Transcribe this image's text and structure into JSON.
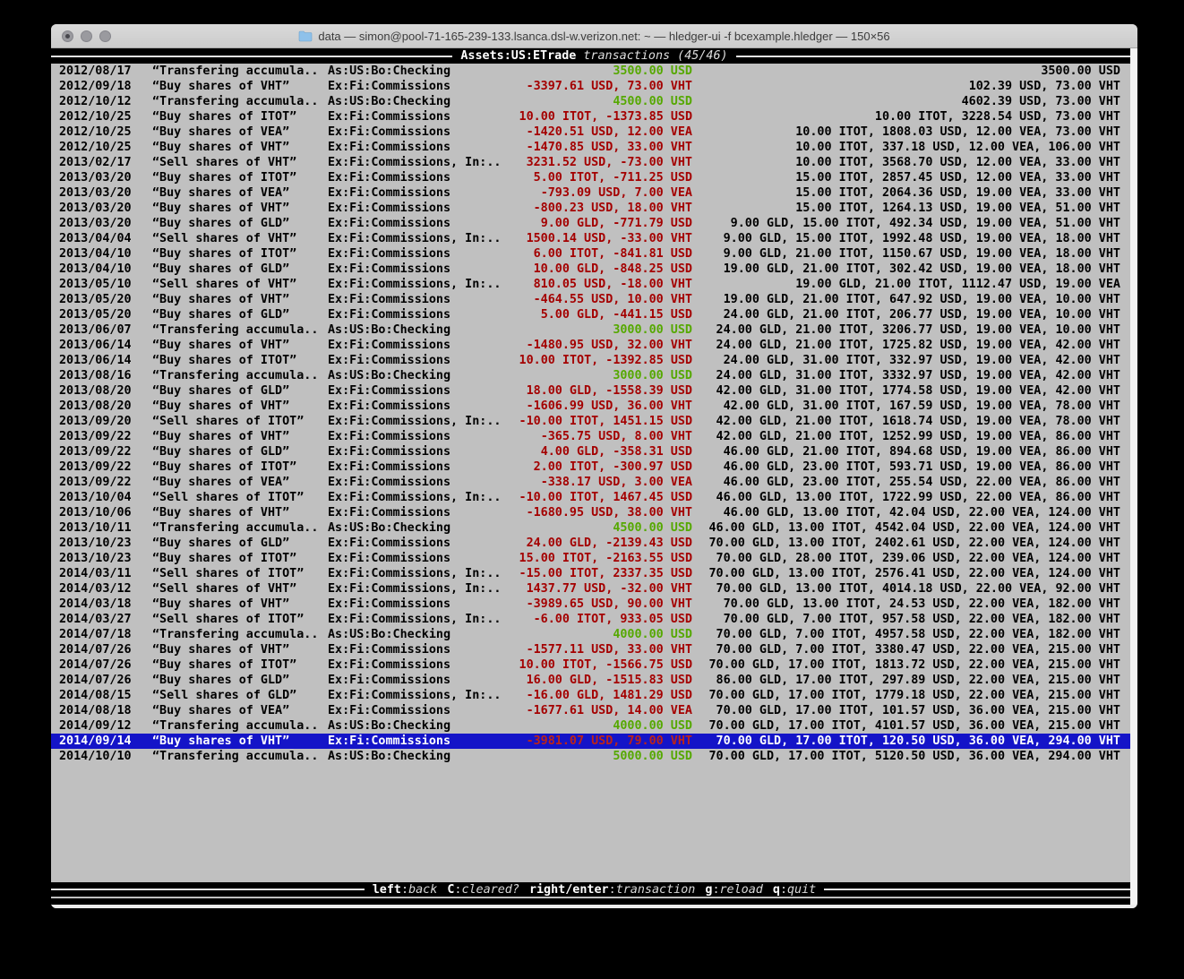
{
  "window": {
    "title": "data — simon@pool-71-165-239-133.lsanca.dsl-w.verizon.net: ~ — hledger-ui -f bcexample.hledger — 150×56"
  },
  "header": {
    "account": "Assets:US:ETrade",
    "listing": "transactions (45/46)"
  },
  "hints": [
    {
      "key": "left",
      "desc": "back"
    },
    {
      "key": "C",
      "desc": "cleared?"
    },
    {
      "key": "right/enter",
      "desc": "transaction"
    },
    {
      "key": "g",
      "desc": "reload"
    },
    {
      "key": "q",
      "desc": "quit"
    }
  ],
  "colors": {
    "terminal_bg": "#c0c0c0",
    "bar_bg": "#000000",
    "selection_bg": "#1414c8",
    "amount_negative": "#a40000",
    "amount_positive": "#55a800"
  },
  "transactions": [
    {
      "date": "2012/08/17",
      "desc": "“Transfering accumula..",
      "account": "As:US:Bo:Checking",
      "change": "3500.00 USD",
      "change_color": "green",
      "balance": "3500.00 USD",
      "selected": false
    },
    {
      "date": "2012/09/18",
      "desc": "“Buy shares of VHT”",
      "account": "Ex:Fi:Commissions",
      "change": "-3397.61 USD, 73.00 VHT",
      "change_color": "red",
      "balance": "102.39 USD, 73.00 VHT",
      "selected": false
    },
    {
      "date": "2012/10/12",
      "desc": "“Transfering accumula..",
      "account": "As:US:Bo:Checking",
      "change": "4500.00 USD",
      "change_color": "green",
      "balance": "4602.39 USD, 73.00 VHT",
      "selected": false
    },
    {
      "date": "2012/10/25",
      "desc": "“Buy shares of ITOT”",
      "account": "Ex:Fi:Commissions",
      "change": "10.00 ITOT, -1373.85 USD",
      "change_color": "red",
      "balance": "10.00 ITOT, 3228.54 USD, 73.00 VHT",
      "selected": false
    },
    {
      "date": "2012/10/25",
      "desc": "“Buy shares of VEA”",
      "account": "Ex:Fi:Commissions",
      "change": "-1420.51 USD, 12.00 VEA",
      "change_color": "red",
      "balance": "10.00 ITOT, 1808.03 USD, 12.00 VEA, 73.00 VHT",
      "selected": false
    },
    {
      "date": "2012/10/25",
      "desc": "“Buy shares of VHT”",
      "account": "Ex:Fi:Commissions",
      "change": "-1470.85 USD, 33.00 VHT",
      "change_color": "red",
      "balance": "10.00 ITOT, 337.18 USD, 12.00 VEA, 106.00 VHT",
      "selected": false
    },
    {
      "date": "2013/02/17",
      "desc": "“Sell shares of VHT”",
      "account": "Ex:Fi:Commissions, In:..",
      "change": "3231.52 USD, -73.00 VHT",
      "change_color": "red",
      "balance": "10.00 ITOT, 3568.70 USD, 12.00 VEA, 33.00 VHT",
      "selected": false
    },
    {
      "date": "2013/03/20",
      "desc": "“Buy shares of ITOT”",
      "account": "Ex:Fi:Commissions",
      "change": "5.00 ITOT, -711.25 USD",
      "change_color": "red",
      "balance": "15.00 ITOT, 2857.45 USD, 12.00 VEA, 33.00 VHT",
      "selected": false
    },
    {
      "date": "2013/03/20",
      "desc": "“Buy shares of VEA”",
      "account": "Ex:Fi:Commissions",
      "change": "-793.09 USD, 7.00 VEA",
      "change_color": "red",
      "balance": "15.00 ITOT, 2064.36 USD, 19.00 VEA, 33.00 VHT",
      "selected": false
    },
    {
      "date": "2013/03/20",
      "desc": "“Buy shares of VHT”",
      "account": "Ex:Fi:Commissions",
      "change": "-800.23 USD, 18.00 VHT",
      "change_color": "red",
      "balance": "15.00 ITOT, 1264.13 USD, 19.00 VEA, 51.00 VHT",
      "selected": false
    },
    {
      "date": "2013/03/20",
      "desc": "“Buy shares of GLD”",
      "account": "Ex:Fi:Commissions",
      "change": "9.00 GLD, -771.79 USD",
      "change_color": "red",
      "balance": "9.00 GLD, 15.00 ITOT, 492.34 USD, 19.00 VEA, 51.00 VHT",
      "selected": false
    },
    {
      "date": "2013/04/04",
      "desc": "“Sell shares of VHT”",
      "account": "Ex:Fi:Commissions, In:..",
      "change": "1500.14 USD, -33.00 VHT",
      "change_color": "red",
      "balance": "9.00 GLD, 15.00 ITOT, 1992.48 USD, 19.00 VEA, 18.00 VHT",
      "selected": false
    },
    {
      "date": "2013/04/10",
      "desc": "“Buy shares of ITOT”",
      "account": "Ex:Fi:Commissions",
      "change": "6.00 ITOT, -841.81 USD",
      "change_color": "red",
      "balance": "9.00 GLD, 21.00 ITOT, 1150.67 USD, 19.00 VEA, 18.00 VHT",
      "selected": false
    },
    {
      "date": "2013/04/10",
      "desc": "“Buy shares of GLD”",
      "account": "Ex:Fi:Commissions",
      "change": "10.00 GLD, -848.25 USD",
      "change_color": "red",
      "balance": "19.00 GLD, 21.00 ITOT, 302.42 USD, 19.00 VEA, 18.00 VHT",
      "selected": false
    },
    {
      "date": "2013/05/10",
      "desc": "“Sell shares of VHT”",
      "account": "Ex:Fi:Commissions, In:..",
      "change": "810.05 USD, -18.00 VHT",
      "change_color": "red",
      "balance": "19.00 GLD, 21.00 ITOT, 1112.47 USD, 19.00 VEA",
      "selected": false
    },
    {
      "date": "2013/05/20",
      "desc": "“Buy shares of VHT”",
      "account": "Ex:Fi:Commissions",
      "change": "-464.55 USD, 10.00 VHT",
      "change_color": "red",
      "balance": "19.00 GLD, 21.00 ITOT, 647.92 USD, 19.00 VEA, 10.00 VHT",
      "selected": false
    },
    {
      "date": "2013/05/20",
      "desc": "“Buy shares of GLD”",
      "account": "Ex:Fi:Commissions",
      "change": "5.00 GLD, -441.15 USD",
      "change_color": "red",
      "balance": "24.00 GLD, 21.00 ITOT, 206.77 USD, 19.00 VEA, 10.00 VHT",
      "selected": false
    },
    {
      "date": "2013/06/07",
      "desc": "“Transfering accumula..",
      "account": "As:US:Bo:Checking",
      "change": "3000.00 USD",
      "change_color": "green",
      "balance": "24.00 GLD, 21.00 ITOT, 3206.77 USD, 19.00 VEA, 10.00 VHT",
      "selected": false
    },
    {
      "date": "2013/06/14",
      "desc": "“Buy shares of VHT”",
      "account": "Ex:Fi:Commissions",
      "change": "-1480.95 USD, 32.00 VHT",
      "change_color": "red",
      "balance": "24.00 GLD, 21.00 ITOT, 1725.82 USD, 19.00 VEA, 42.00 VHT",
      "selected": false
    },
    {
      "date": "2013/06/14",
      "desc": "“Buy shares of ITOT”",
      "account": "Ex:Fi:Commissions",
      "change": "10.00 ITOT, -1392.85 USD",
      "change_color": "red",
      "balance": "24.00 GLD, 31.00 ITOT, 332.97 USD, 19.00 VEA, 42.00 VHT",
      "selected": false
    },
    {
      "date": "2013/08/16",
      "desc": "“Transfering accumula..",
      "account": "As:US:Bo:Checking",
      "change": "3000.00 USD",
      "change_color": "green",
      "balance": "24.00 GLD, 31.00 ITOT, 3332.97 USD, 19.00 VEA, 42.00 VHT",
      "selected": false
    },
    {
      "date": "2013/08/20",
      "desc": "“Buy shares of GLD”",
      "account": "Ex:Fi:Commissions",
      "change": "18.00 GLD, -1558.39 USD",
      "change_color": "red",
      "balance": "42.00 GLD, 31.00 ITOT, 1774.58 USD, 19.00 VEA, 42.00 VHT",
      "selected": false
    },
    {
      "date": "2013/08/20",
      "desc": "“Buy shares of VHT”",
      "account": "Ex:Fi:Commissions",
      "change": "-1606.99 USD, 36.00 VHT",
      "change_color": "red",
      "balance": "42.00 GLD, 31.00 ITOT, 167.59 USD, 19.00 VEA, 78.00 VHT",
      "selected": false
    },
    {
      "date": "2013/09/20",
      "desc": "“Sell shares of ITOT”",
      "account": "Ex:Fi:Commissions, In:..",
      "change": "-10.00 ITOT, 1451.15 USD",
      "change_color": "red",
      "balance": "42.00 GLD, 21.00 ITOT, 1618.74 USD, 19.00 VEA, 78.00 VHT",
      "selected": false
    },
    {
      "date": "2013/09/22",
      "desc": "“Buy shares of VHT”",
      "account": "Ex:Fi:Commissions",
      "change": "-365.75 USD, 8.00 VHT",
      "change_color": "red",
      "balance": "42.00 GLD, 21.00 ITOT, 1252.99 USD, 19.00 VEA, 86.00 VHT",
      "selected": false
    },
    {
      "date": "2013/09/22",
      "desc": "“Buy shares of GLD”",
      "account": "Ex:Fi:Commissions",
      "change": "4.00 GLD, -358.31 USD",
      "change_color": "red",
      "balance": "46.00 GLD, 21.00 ITOT, 894.68 USD, 19.00 VEA, 86.00 VHT",
      "selected": false
    },
    {
      "date": "2013/09/22",
      "desc": "“Buy shares of ITOT”",
      "account": "Ex:Fi:Commissions",
      "change": "2.00 ITOT, -300.97 USD",
      "change_color": "red",
      "balance": "46.00 GLD, 23.00 ITOT, 593.71 USD, 19.00 VEA, 86.00 VHT",
      "selected": false
    },
    {
      "date": "2013/09/22",
      "desc": "“Buy shares of VEA”",
      "account": "Ex:Fi:Commissions",
      "change": "-338.17 USD, 3.00 VEA",
      "change_color": "red",
      "balance": "46.00 GLD, 23.00 ITOT, 255.54 USD, 22.00 VEA, 86.00 VHT",
      "selected": false
    },
    {
      "date": "2013/10/04",
      "desc": "“Sell shares of ITOT”",
      "account": "Ex:Fi:Commissions, In:..",
      "change": "-10.00 ITOT, 1467.45 USD",
      "change_color": "red",
      "balance": "46.00 GLD, 13.00 ITOT, 1722.99 USD, 22.00 VEA, 86.00 VHT",
      "selected": false
    },
    {
      "date": "2013/10/06",
      "desc": "“Buy shares of VHT”",
      "account": "Ex:Fi:Commissions",
      "change": "-1680.95 USD, 38.00 VHT",
      "change_color": "red",
      "balance": "46.00 GLD, 13.00 ITOT, 42.04 USD, 22.00 VEA, 124.00 VHT",
      "selected": false
    },
    {
      "date": "2013/10/11",
      "desc": "“Transfering accumula..",
      "account": "As:US:Bo:Checking",
      "change": "4500.00 USD",
      "change_color": "green",
      "balance": "46.00 GLD, 13.00 ITOT, 4542.04 USD, 22.00 VEA, 124.00 VHT",
      "selected": false
    },
    {
      "date": "2013/10/23",
      "desc": "“Buy shares of GLD”",
      "account": "Ex:Fi:Commissions",
      "change": "24.00 GLD, -2139.43 USD",
      "change_color": "red",
      "balance": "70.00 GLD, 13.00 ITOT, 2402.61 USD, 22.00 VEA, 124.00 VHT",
      "selected": false
    },
    {
      "date": "2013/10/23",
      "desc": "“Buy shares of ITOT”",
      "account": "Ex:Fi:Commissions",
      "change": "15.00 ITOT, -2163.55 USD",
      "change_color": "red",
      "balance": "70.00 GLD, 28.00 ITOT, 239.06 USD, 22.00 VEA, 124.00 VHT",
      "selected": false
    },
    {
      "date": "2014/03/11",
      "desc": "“Sell shares of ITOT”",
      "account": "Ex:Fi:Commissions, In:..",
      "change": "-15.00 ITOT, 2337.35 USD",
      "change_color": "red",
      "balance": "70.00 GLD, 13.00 ITOT, 2576.41 USD, 22.00 VEA, 124.00 VHT",
      "selected": false
    },
    {
      "date": "2014/03/12",
      "desc": "“Sell shares of VHT”",
      "account": "Ex:Fi:Commissions, In:..",
      "change": "1437.77 USD, -32.00 VHT",
      "change_color": "red",
      "balance": "70.00 GLD, 13.00 ITOT, 4014.18 USD, 22.00 VEA, 92.00 VHT",
      "selected": false
    },
    {
      "date": "2014/03/18",
      "desc": "“Buy shares of VHT”",
      "account": "Ex:Fi:Commissions",
      "change": "-3989.65 USD, 90.00 VHT",
      "change_color": "red",
      "balance": "70.00 GLD, 13.00 ITOT, 24.53 USD, 22.00 VEA, 182.00 VHT",
      "selected": false
    },
    {
      "date": "2014/03/27",
      "desc": "“Sell shares of ITOT”",
      "account": "Ex:Fi:Commissions, In:..",
      "change": "-6.00 ITOT, 933.05 USD",
      "change_color": "red",
      "balance": "70.00 GLD, 7.00 ITOT, 957.58 USD, 22.00 VEA, 182.00 VHT",
      "selected": false
    },
    {
      "date": "2014/07/18",
      "desc": "“Transfering accumula..",
      "account": "As:US:Bo:Checking",
      "change": "4000.00 USD",
      "change_color": "green",
      "balance": "70.00 GLD, 7.00 ITOT, 4957.58 USD, 22.00 VEA, 182.00 VHT",
      "selected": false
    },
    {
      "date": "2014/07/26",
      "desc": "“Buy shares of VHT”",
      "account": "Ex:Fi:Commissions",
      "change": "-1577.11 USD, 33.00 VHT",
      "change_color": "red",
      "balance": "70.00 GLD, 7.00 ITOT, 3380.47 USD, 22.00 VEA, 215.00 VHT",
      "selected": false
    },
    {
      "date": "2014/07/26",
      "desc": "“Buy shares of ITOT”",
      "account": "Ex:Fi:Commissions",
      "change": "10.00 ITOT, -1566.75 USD",
      "change_color": "red",
      "balance": "70.00 GLD, 17.00 ITOT, 1813.72 USD, 22.00 VEA, 215.00 VHT",
      "selected": false
    },
    {
      "date": "2014/07/26",
      "desc": "“Buy shares of GLD”",
      "account": "Ex:Fi:Commissions",
      "change": "16.00 GLD, -1515.83 USD",
      "change_color": "red",
      "balance": "86.00 GLD, 17.00 ITOT, 297.89 USD, 22.00 VEA, 215.00 VHT",
      "selected": false
    },
    {
      "date": "2014/08/15",
      "desc": "“Sell shares of GLD”",
      "account": "Ex:Fi:Commissions, In:..",
      "change": "-16.00 GLD, 1481.29 USD",
      "change_color": "red",
      "balance": "70.00 GLD, 17.00 ITOT, 1779.18 USD, 22.00 VEA, 215.00 VHT",
      "selected": false
    },
    {
      "date": "2014/08/18",
      "desc": "“Buy shares of VEA”",
      "account": "Ex:Fi:Commissions",
      "change": "-1677.61 USD, 14.00 VEA",
      "change_color": "red",
      "balance": "70.00 GLD, 17.00 ITOT, 101.57 USD, 36.00 VEA, 215.00 VHT",
      "selected": false
    },
    {
      "date": "2014/09/12",
      "desc": "“Transfering accumula..",
      "account": "As:US:Bo:Checking",
      "change": "4000.00 USD",
      "change_color": "green",
      "balance": "70.00 GLD, 17.00 ITOT, 4101.57 USD, 36.00 VEA, 215.00 VHT",
      "selected": false
    },
    {
      "date": "2014/09/14",
      "desc": "“Buy shares of VHT”",
      "account": "Ex:Fi:Commissions",
      "change": "-3981.07 USD, 79.00 VHT",
      "change_color": "red",
      "balance": "70.00 GLD, 17.00 ITOT, 120.50 USD, 36.00 VEA, 294.00 VHT",
      "selected": true
    },
    {
      "date": "2014/10/10",
      "desc": "“Transfering accumula..",
      "account": "As:US:Bo:Checking",
      "change": "5000.00 USD",
      "change_color": "green",
      "balance": "70.00 GLD, 17.00 ITOT, 5120.50 USD, 36.00 VEA, 294.00 VHT",
      "selected": false
    }
  ]
}
